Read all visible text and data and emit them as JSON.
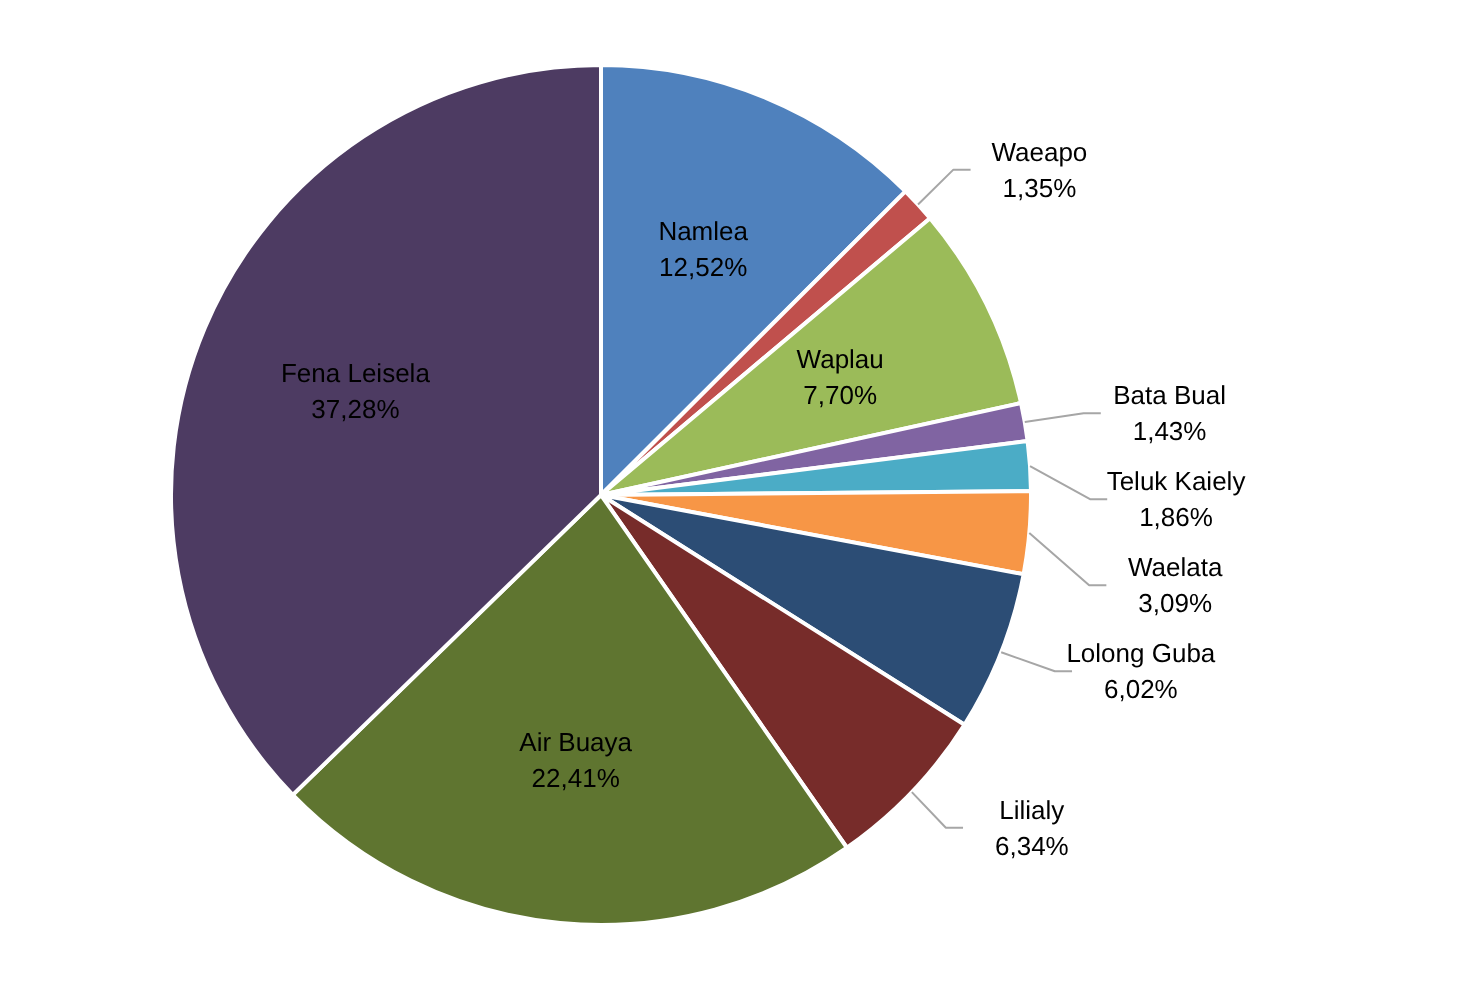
{
  "chart_data": {
    "type": "pie",
    "categories": [
      "Namlea",
      "Waeapo",
      "Waplau",
      "Bata Bual",
      "Teluk Kaiely",
      "Waelata",
      "Lolong Guba",
      "Lilialy",
      "Air Buaya",
      "Fena Leisela"
    ],
    "values": [
      12.52,
      1.35,
      7.7,
      1.43,
      1.86,
      3.09,
      6.02,
      6.34,
      22.41,
      37.28
    ],
    "colors": [
      "#4f81bd",
      "#c0504d",
      "#9bbb59",
      "#8064a2",
      "#4bacc6",
      "#f79646",
      "#2c4d75",
      "#772c2a",
      "#5f7530",
      "#4d3b62"
    ],
    "value_labels": [
      "12,52%",
      "1,35%",
      "7,70%",
      "1,43%",
      "1,86%",
      "3,09%",
      "6,02%",
      "6,34%",
      "22,41%",
      "37,28%"
    ]
  }
}
